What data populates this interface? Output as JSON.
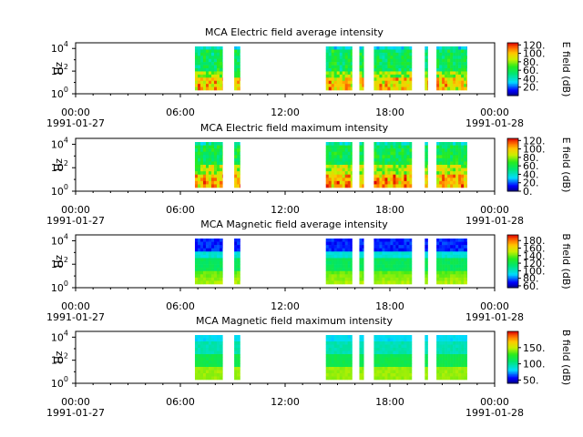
{
  "chart_data": [
    {
      "type": "heatmap",
      "title": "MCA  Electric field average intensity",
      "ylabel": "Hz",
      "y_tick_labels": [
        "10^0",
        "10^2",
        "10^4"
      ],
      "y_scale": "log",
      "ylim": [
        1,
        31623
      ],
      "xlim": [
        "1991-01-27 00:00",
        "1991-01-28 00:00"
      ],
      "x_tick_labels": [
        "00:00\n1991-01-27",
        "06:00",
        "12:00",
        "18:00",
        "00:00\n1991-01-28"
      ],
      "colorbar_label": "E field (dB)",
      "colorbar_range": [
        0,
        125
      ],
      "colorbar_ticks": [
        "20.",
        "40.",
        "60.",
        "80.",
        "100.",
        "120."
      ],
      "colorscale": "rainbow",
      "data_segments": [
        [
          "06:50",
          "08:25"
        ],
        [
          "09:05",
          "09:25"
        ],
        [
          "14:20",
          "15:50"
        ],
        [
          "16:15",
          "16:30"
        ],
        [
          "17:05",
          "19:15"
        ],
        [
          "20:00",
          "20:10"
        ],
        [
          "20:40",
          "22:25"
        ]
      ],
      "character": "lower frequencies yellow-red (70-100 dB), upper frequencies green (40-60 dB), top edge cyan/blue"
    },
    {
      "type": "heatmap",
      "title": "MCA  Electric field maximum intensity",
      "ylabel": "Hz",
      "y_tick_labels": [
        "10^0",
        "10^2",
        "10^4"
      ],
      "y_scale": "log",
      "ylim": [
        1,
        31623
      ],
      "xlim": [
        "1991-01-27 00:00",
        "1991-01-28 00:00"
      ],
      "x_tick_labels": [
        "00:00\n1991-01-27",
        "06:00",
        "12:00",
        "18:00",
        "00:00\n1991-01-28"
      ],
      "colorbar_label": "E field (dB)",
      "colorbar_range": [
        0,
        125
      ],
      "colorbar_ticks": [
        "0.",
        "20.",
        "40.",
        "60.",
        "80.",
        "100.",
        "120."
      ],
      "colorscale": "rainbow",
      "data_segments": [
        [
          "06:50",
          "08:25"
        ],
        [
          "09:05",
          "09:25"
        ],
        [
          "14:20",
          "15:50"
        ],
        [
          "16:15",
          "16:30"
        ],
        [
          "17:05",
          "19:15"
        ],
        [
          "20:00",
          "20:10"
        ],
        [
          "20:40",
          "22:25"
        ]
      ],
      "character": "similar to average with slightly more orange at low frequencies"
    },
    {
      "type": "heatmap",
      "title": "MCA  Magnetic field average intensity",
      "ylabel": "Hz",
      "y_tick_labels": [
        "10^0",
        "10^2",
        "10^4"
      ],
      "y_scale": "log",
      "ylim": [
        1,
        31623
      ],
      "xlim": [
        "1991-01-27 00:00",
        "1991-01-28 00:00"
      ],
      "x_tick_labels": [
        "00:00\n1991-01-27",
        "06:00",
        "12:00",
        "18:00",
        "00:00\n1991-01-28"
      ],
      "colorbar_label": "B field (dB)",
      "colorbar_range": [
        55,
        195
      ],
      "colorbar_ticks": [
        "60.",
        "80.",
        "100.",
        "120.",
        "140.",
        "160.",
        "180."
      ],
      "colorscale": "rainbow",
      "data_segments": [
        [
          "06:50",
          "08:25"
        ],
        [
          "09:05",
          "09:25"
        ],
        [
          "14:20",
          "15:50"
        ],
        [
          "16:15",
          "16:30"
        ],
        [
          "17:05",
          "19:15"
        ],
        [
          "20:00",
          "20:10"
        ],
        [
          "20:40",
          "22:25"
        ]
      ],
      "character": "horizontal bands: top blue, cyan, green, bottom yellow-green"
    },
    {
      "type": "heatmap",
      "title": "MCA  Magnetic field maximum intensity",
      "ylabel": "Hz",
      "y_tick_labels": [
        "10^0",
        "10^2",
        "10^4"
      ],
      "y_scale": "log",
      "ylim": [
        1,
        31623
      ],
      "xlim": [
        "1991-01-27 00:00",
        "1991-01-28 00:00"
      ],
      "x_tick_labels": [
        "00:00\n1991-01-27",
        "06:00",
        "12:00",
        "18:00",
        "00:00\n1991-01-28"
      ],
      "colorbar_label": "B field (dB)",
      "colorbar_range": [
        40,
        200
      ],
      "colorbar_ticks": [
        "50.",
        "100.",
        "150."
      ],
      "colorscale": "rainbow",
      "data_segments": [
        [
          "06:50",
          "08:25"
        ],
        [
          "09:05",
          "09:25"
        ],
        [
          "14:20",
          "15:50"
        ],
        [
          "16:15",
          "16:30"
        ],
        [
          "17:05",
          "19:15"
        ],
        [
          "20:00",
          "20:10"
        ],
        [
          "20:40",
          "22:25"
        ]
      ],
      "character": "horizontal bands: top cyan, green, bottom yellow"
    }
  ]
}
